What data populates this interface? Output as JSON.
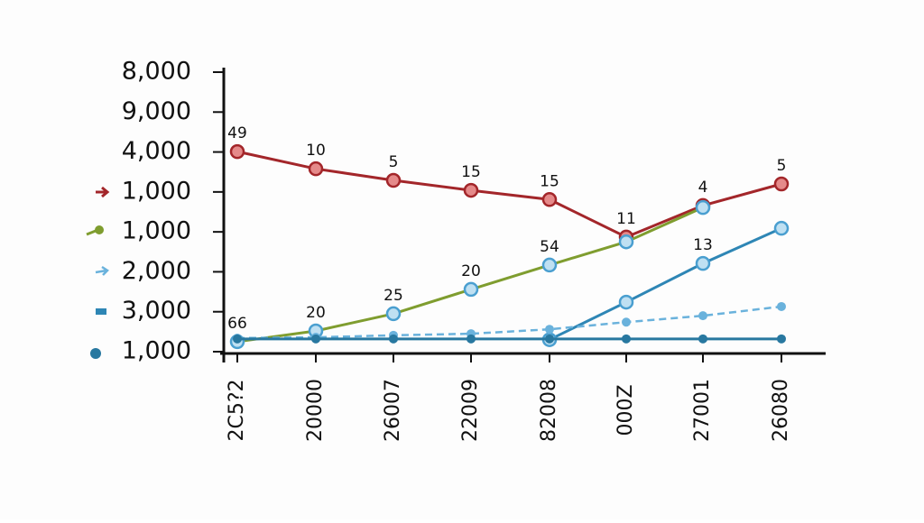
{
  "chart_data": {
    "type": "line",
    "categories": [
      "2C5?2",
      "20000",
      "26007",
      "22009",
      "82008",
      "000Z",
      "27001",
      "26080"
    ],
    "ylim": [
      0,
      7.2
    ],
    "yticks": [
      {
        "value": 0,
        "label": "1,000"
      },
      {
        "value": 1,
        "label": "3,000"
      },
      {
        "value": 2,
        "label": "2,000"
      },
      {
        "value": 3,
        "label": "1,000"
      },
      {
        "value": 4,
        "label": "1,000"
      },
      {
        "value": 5,
        "label": "4,000"
      },
      {
        "value": 6,
        "label": "9,000"
      },
      {
        "value": 7,
        "label": "8,000"
      }
    ],
    "series": [
      {
        "color": "#a3262a",
        "marker_fill": "#e58a8a",
        "dash": false,
        "values": [
          5.01,
          4.58,
          4.29,
          4.04,
          3.81,
          2.87,
          3.66,
          4.2
        ],
        "point_labels": [
          "49",
          "10",
          "5",
          "15",
          "15",
          "11",
          "4",
          "5"
        ]
      },
      {
        "color": "#7f9d2f",
        "marker_fill": "#bfe0f2",
        "marker_stroke": "#4a9fd0",
        "dash": false,
        "values": [
          0.25,
          0.52,
          0.95,
          1.56,
          2.17,
          2.75,
          3.61,
          null
        ],
        "point_labels": [
          "66",
          "20",
          "25",
          "20",
          "54",
          null,
          null,
          null
        ]
      },
      {
        "color": "#2e86b5",
        "marker_fill": "#bfe0f2",
        "marker_stroke": "#4a9fd0",
        "dash": false,
        "values": [
          null,
          null,
          null,
          null,
          0.3,
          1.24,
          2.21,
          3.09
        ],
        "point_labels": [
          null,
          null,
          null,
          null,
          null,
          null,
          "13",
          null
        ]
      },
      {
        "color": "#6ab2dc",
        "marker_fill": "#6ab2dc",
        "dash": true,
        "values": [
          0.34,
          0.36,
          0.41,
          0.45,
          0.56,
          0.74,
          0.9,
          1.13
        ]
      },
      {
        "color": "#2878a0",
        "marker_fill": "#2878a0",
        "dash": false,
        "values": [
          0.32,
          0.32,
          0.32,
          0.32,
          0.32,
          0.32,
          0.32,
          0.32
        ]
      }
    ]
  }
}
